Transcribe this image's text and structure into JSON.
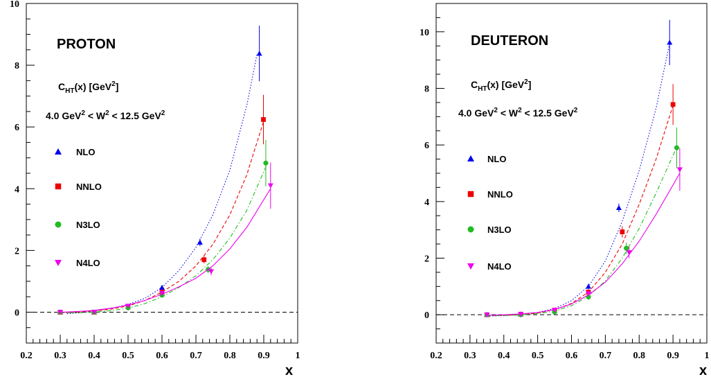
{
  "chart_data": [
    {
      "type": "scatter",
      "title": "PROTON",
      "ylabel_text": "C",
      "ylabel_sub": "HT",
      "ylabel_rest": "(x) [GeV",
      "ylabel_sup": "2",
      "ylabel_end": "]",
      "range_parts": [
        "4.0 GeV",
        "2",
        " < W",
        "2",
        " < 12.5 GeV",
        "2"
      ],
      "xlabel": "x",
      "xlim": [
        0.2,
        1.0
      ],
      "ylim": [
        -1,
        10
      ],
      "xticks": [
        "0.2",
        "0.3",
        "0.4",
        "0.5",
        "0.6",
        "0.7",
        "0.8",
        "0.9",
        "1"
      ],
      "xtick_values": [
        0.2,
        0.3,
        0.4,
        0.5,
        0.6,
        0.7,
        0.8,
        0.9,
        1.0
      ],
      "yticks": [
        "0",
        "2",
        "4",
        "6",
        "8",
        "10"
      ],
      "ytick_values": [
        0,
        2,
        4,
        6,
        8,
        10
      ],
      "zero_line": true,
      "series": [
        {
          "name": "NLO",
          "color": "#0000ee",
          "marker": "triangle-up",
          "line": "dotted",
          "x": [
            0.3,
            0.4,
            0.5,
            0.6,
            0.712,
            0.887
          ],
          "y": [
            0.0,
            0.0,
            0.18,
            0.8,
            2.26,
            8.38
          ],
          "err": [
            0.05,
            0.05,
            0.06,
            0.08,
            0.12,
            0.9
          ],
          "curve_x": [
            0.32,
            0.36,
            0.4,
            0.45,
            0.5,
            0.55,
            0.6,
            0.65,
            0.7,
            0.75,
            0.8,
            0.85,
            0.88
          ],
          "curve_y": [
            -0.05,
            -0.02,
            0.04,
            0.12,
            0.25,
            0.45,
            0.8,
            1.35,
            2.1,
            3.15,
            4.6,
            6.7,
            8.35
          ]
        },
        {
          "name": "NNLO",
          "color": "#ee0000",
          "marker": "square",
          "line": "dashed",
          "x": [
            0.3,
            0.4,
            0.5,
            0.6,
            0.724,
            0.899
          ],
          "y": [
            0.0,
            0.0,
            0.18,
            0.65,
            1.7,
            6.24
          ],
          "err": [
            0.05,
            0.05,
            0.06,
            0.08,
            0.12,
            0.8
          ],
          "curve_x": [
            0.3,
            0.35,
            0.4,
            0.45,
            0.5,
            0.55,
            0.6,
            0.65,
            0.7,
            0.75,
            0.8,
            0.85,
            0.9
          ],
          "curve_y": [
            -0.02,
            0.0,
            0.04,
            0.1,
            0.2,
            0.38,
            0.65,
            1.0,
            1.5,
            2.2,
            3.15,
            4.45,
            6.2
          ]
        },
        {
          "name": "N3LO",
          "color": "#22bb22",
          "marker": "circle",
          "line": "dashdot",
          "x": [
            0.3,
            0.4,
            0.5,
            0.6,
            0.736,
            0.906
          ],
          "y": [
            0.0,
            0.0,
            0.14,
            0.55,
            1.38,
            4.83
          ],
          "err": [
            0.05,
            0.05,
            0.06,
            0.08,
            0.12,
            0.75
          ],
          "curve_x": [
            0.3,
            0.35,
            0.4,
            0.45,
            0.5,
            0.55,
            0.6,
            0.65,
            0.7,
            0.75,
            0.8,
            0.85,
            0.91
          ],
          "curve_y": [
            -0.02,
            -0.02,
            0.0,
            0.05,
            0.13,
            0.28,
            0.5,
            0.8,
            1.18,
            1.7,
            2.4,
            3.3,
            4.8
          ]
        },
        {
          "name": "N4LO",
          "color": "#ee00ee",
          "marker": "triangle-down",
          "line": "solid",
          "x": [
            0.3,
            0.4,
            0.5,
            0.6,
            0.745,
            0.92
          ],
          "y": [
            0.0,
            0.0,
            0.2,
            0.62,
            1.32,
            4.1
          ],
          "err": [
            0.05,
            0.05,
            0.06,
            0.08,
            0.12,
            0.75
          ],
          "curve_x": [
            0.3,
            0.35,
            0.4,
            0.45,
            0.5,
            0.55,
            0.6,
            0.65,
            0.7,
            0.75,
            0.8,
            0.85,
            0.92
          ],
          "curve_y": [
            0.0,
            0.02,
            0.06,
            0.13,
            0.23,
            0.38,
            0.58,
            0.82,
            1.1,
            1.5,
            2.05,
            2.75,
            4.0
          ]
        }
      ]
    },
    {
      "type": "scatter",
      "title": "DEUTERON",
      "ylabel_text": "C",
      "ylabel_sub": "HT",
      "ylabel_rest": "(x) [GeV",
      "ylabel_sup": "2",
      "ylabel_end": "]",
      "range_parts": [
        "4.0 GeV",
        "2",
        " < W",
        "2",
        " < 12.5 GeV",
        "2"
      ],
      "xlabel": "x",
      "xlim": [
        0.2,
        1.0
      ],
      "ylim": [
        -1,
        11
      ],
      "xticks": [
        "0.2",
        "0.3",
        "0.4",
        "0.5",
        "0.6",
        "0.7",
        "0.8",
        "0.9",
        "1"
      ],
      "xtick_values": [
        0.2,
        0.3,
        0.4,
        0.5,
        0.6,
        0.7,
        0.8,
        0.9,
        1.0
      ],
      "yticks": [
        "0",
        "2",
        "4",
        "6",
        "8",
        "10"
      ],
      "ytick_values": [
        0,
        2,
        4,
        6,
        8,
        10
      ],
      "zero_line": true,
      "series": [
        {
          "name": "NLO",
          "color": "#0000ee",
          "marker": "triangle-up",
          "line": "dotted",
          "x": [
            0.35,
            0.45,
            0.55,
            0.65,
            0.74,
            0.89
          ],
          "y": [
            0.0,
            0.02,
            0.15,
            1.0,
            3.78,
            9.62
          ],
          "err": [
            0.05,
            0.05,
            0.06,
            0.1,
            0.15,
            0.8
          ],
          "curve_x": [
            0.35,
            0.4,
            0.45,
            0.5,
            0.55,
            0.6,
            0.65,
            0.7,
            0.75,
            0.8,
            0.85,
            0.89
          ],
          "curve_y": [
            -0.05,
            -0.03,
            0.0,
            0.08,
            0.22,
            0.5,
            1.0,
            1.9,
            3.3,
            5.1,
            7.3,
            9.6
          ]
        },
        {
          "name": "NNLO",
          "color": "#ee0000",
          "marker": "square",
          "line": "dashed",
          "x": [
            0.35,
            0.45,
            0.55,
            0.65,
            0.75,
            0.9
          ],
          "y": [
            0.0,
            0.02,
            0.15,
            0.8,
            2.93,
            7.43
          ],
          "err": [
            0.05,
            0.05,
            0.06,
            0.1,
            0.2,
            0.72
          ],
          "curve_x": [
            0.35,
            0.4,
            0.45,
            0.5,
            0.55,
            0.6,
            0.65,
            0.7,
            0.75,
            0.8,
            0.85,
            0.9
          ],
          "curve_y": [
            -0.03,
            -0.02,
            0.0,
            0.06,
            0.18,
            0.4,
            0.8,
            1.5,
            2.5,
            3.9,
            5.5,
            7.4
          ]
        },
        {
          "name": "N3LO",
          "color": "#22bb22",
          "marker": "circle",
          "line": "dashdot",
          "x": [
            0.35,
            0.45,
            0.55,
            0.65,
            0.762,
            0.911
          ],
          "y": [
            0.0,
            0.0,
            0.1,
            0.63,
            2.35,
            5.9
          ],
          "err": [
            0.05,
            0.05,
            0.06,
            0.1,
            0.2,
            0.72
          ],
          "curve_x": [
            0.35,
            0.4,
            0.45,
            0.5,
            0.55,
            0.6,
            0.65,
            0.7,
            0.75,
            0.8,
            0.85,
            0.91
          ],
          "curve_y": [
            -0.03,
            -0.03,
            -0.01,
            0.04,
            0.13,
            0.32,
            0.65,
            1.2,
            2.0,
            3.05,
            4.3,
            5.9
          ]
        },
        {
          "name": "N4LO",
          "color": "#ee00ee",
          "marker": "triangle-down",
          "line": "solid",
          "x": [
            0.35,
            0.45,
            0.55,
            0.65,
            0.77,
            0.92
          ],
          "y": [
            0.0,
            0.02,
            0.17,
            0.75,
            2.2,
            5.13
          ],
          "err": [
            0.05,
            0.05,
            0.06,
            0.1,
            0.2,
            0.75
          ],
          "curve_x": [
            0.35,
            0.4,
            0.45,
            0.5,
            0.55,
            0.6,
            0.65,
            0.7,
            0.75,
            0.8,
            0.85,
            0.92
          ],
          "curve_y": [
            -0.02,
            0.0,
            0.03,
            0.08,
            0.18,
            0.38,
            0.7,
            1.15,
            1.8,
            2.6,
            3.55,
            5.0
          ]
        }
      ]
    }
  ]
}
